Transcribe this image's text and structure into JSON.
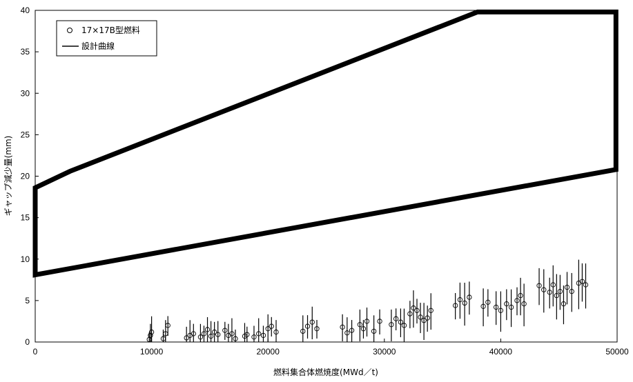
{
  "chart_data": {
    "type": "scatter",
    "xlabel": "燃料集合体燃焼度(MWd／t)",
    "ylabel": "ギャップ減少量(mm)",
    "xlim": [
      0,
      50000
    ],
    "ylim": [
      0,
      40
    ],
    "x_ticks": [
      "0",
      "10000",
      "20000",
      "30000",
      "40000",
      "50000"
    ],
    "y_ticks": [
      "0",
      "5",
      "10",
      "15",
      "20",
      "25",
      "30",
      "35",
      "40"
    ],
    "grid": false,
    "legend_placement": "top-left",
    "legend": [
      {
        "label": "17×17B型燃料",
        "marker": "circle"
      },
      {
        "label": "設計曲線",
        "marker": "line"
      }
    ],
    "design_curve": [
      [
        0,
        8.1
      ],
      [
        49900,
        20.8
      ],
      [
        49900,
        39.8
      ],
      [
        38000,
        39.8
      ],
      [
        3000,
        20.6
      ],
      [
        0,
        18.6
      ],
      [
        0,
        8.1
      ]
    ],
    "series": [
      {
        "name": "17×17B型燃料",
        "points": [
          [
            9800,
            0.3
          ],
          [
            9900,
            0.8
          ],
          [
            10000,
            1.2
          ],
          [
            11000,
            0.4
          ],
          [
            11200,
            1.0
          ],
          [
            11400,
            2.0
          ],
          [
            13000,
            0.5
          ],
          [
            13300,
            0.8
          ],
          [
            13600,
            1.0
          ],
          [
            14200,
            0.6
          ],
          [
            14500,
            1.0
          ],
          [
            14800,
            1.5
          ],
          [
            15100,
            0.7
          ],
          [
            15400,
            1.2
          ],
          [
            15700,
            0.9
          ],
          [
            16300,
            1.4
          ],
          [
            16600,
            0.8
          ],
          [
            16900,
            1.0
          ],
          [
            17200,
            0.4
          ],
          [
            18000,
            0.7
          ],
          [
            18200,
            0.9
          ],
          [
            18800,
            0.6
          ],
          [
            19200,
            1.0
          ],
          [
            19600,
            0.8
          ],
          [
            20000,
            1.6
          ],
          [
            20300,
            1.9
          ],
          [
            20700,
            1.2
          ],
          [
            23000,
            1.3
          ],
          [
            23400,
            1.9
          ],
          [
            23800,
            2.4
          ],
          [
            24200,
            1.6
          ],
          [
            26400,
            1.8
          ],
          [
            26800,
            1.1
          ],
          [
            27200,
            1.4
          ],
          [
            27900,
            2.1
          ],
          [
            28200,
            1.6
          ],
          [
            28500,
            2.5
          ],
          [
            29100,
            1.3
          ],
          [
            29600,
            2.5
          ],
          [
            30600,
            2.1
          ],
          [
            31000,
            2.8
          ],
          [
            31400,
            2.4
          ],
          [
            31700,
            2.0
          ],
          [
            32200,
            3.4
          ],
          [
            32500,
            4.1
          ],
          [
            32800,
            3.8
          ],
          [
            33100,
            3.0
          ],
          [
            33400,
            2.6
          ],
          [
            33700,
            2.9
          ],
          [
            34000,
            3.8
          ],
          [
            36100,
            4.4
          ],
          [
            36500,
            5.1
          ],
          [
            36900,
            4.7
          ],
          [
            37300,
            5.4
          ],
          [
            38500,
            4.3
          ],
          [
            38900,
            4.8
          ],
          [
            39600,
            4.2
          ],
          [
            40000,
            3.8
          ],
          [
            40500,
            4.6
          ],
          [
            40900,
            4.2
          ],
          [
            41400,
            5.0
          ],
          [
            41700,
            5.6
          ],
          [
            42000,
            4.6
          ],
          [
            43300,
            6.8
          ],
          [
            43700,
            6.3
          ],
          [
            44200,
            6.0
          ],
          [
            44500,
            6.9
          ],
          [
            44800,
            5.6
          ],
          [
            45100,
            6.1
          ],
          [
            45400,
            4.6
          ],
          [
            45700,
            6.6
          ],
          [
            46100,
            6.1
          ],
          [
            46700,
            7.1
          ],
          [
            47000,
            7.3
          ],
          [
            47300,
            6.9
          ]
        ]
      }
    ]
  }
}
